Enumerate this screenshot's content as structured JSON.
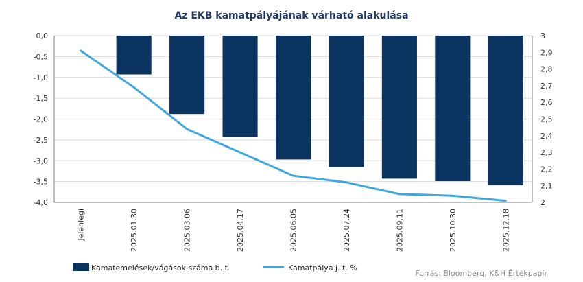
{
  "chart_data": {
    "type": "bar",
    "title": "Az EKB kamatpályájának várható alakulása",
    "categories": [
      "Jelenlegi",
      "2025.01.30",
      "2025.03.06",
      "2025.04.17",
      "2025.06.05",
      "2025.07.24",
      "2025.09.11",
      "2025.10.30",
      "2025.12.18"
    ],
    "series": [
      {
        "name": "Kamatemelések/vágások száma b. t.",
        "type": "bar",
        "axis": "left",
        "color": "#0b3461",
        "values": [
          0,
          -0.93,
          -1.88,
          -2.43,
          -2.97,
          -3.15,
          -3.43,
          -3.49,
          -3.59
        ]
      },
      {
        "name": "Kamatpálya j. t. %",
        "type": "line",
        "axis": "right",
        "color": "#3ea8dc",
        "values": [
          2.91,
          2.69,
          2.44,
          2.3,
          2.16,
          2.12,
          2.05,
          2.04,
          2.01
        ]
      }
    ],
    "y_left": {
      "ylim": [
        -4.0,
        0.0
      ],
      "ticks": [
        0,
        -0.5,
        -1,
        -1.5,
        -2,
        -2.5,
        -3,
        -3.5,
        -4
      ],
      "tick_labels": [
        "0,0",
        "-0,5",
        "-1,0",
        "-1,5",
        "-2,0",
        "-2,5",
        "-3,0",
        "-3,5",
        "-4,0"
      ]
    },
    "y_right": {
      "ylim": [
        2.0,
        3.0
      ],
      "ticks": [
        3,
        2.9,
        2.8,
        2.7,
        2.6,
        2.5,
        2.4,
        2.3,
        2.2,
        2.1,
        2
      ],
      "tick_labels": [
        "3",
        "2,9",
        "2,8",
        "2,7",
        "2,6",
        "2,5",
        "2,4",
        "2,3",
        "2,2",
        "2,1",
        "2"
      ]
    },
    "grid": true,
    "legend": "bottom-left",
    "source": "Forrás: Bloomberg, K&H Értékpapír"
  }
}
